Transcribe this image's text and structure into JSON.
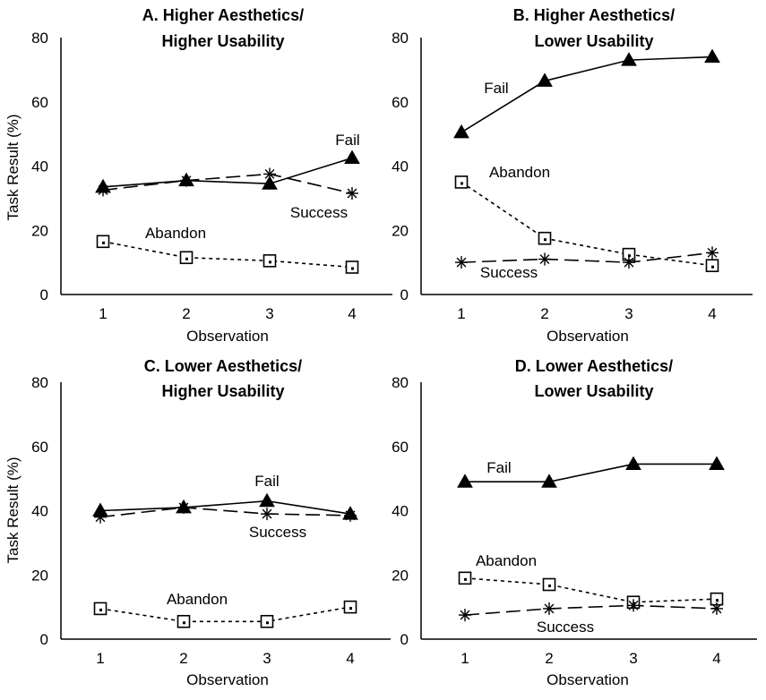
{
  "chart_data": [
    {
      "type": "line",
      "title": [
        "A. Higher Aesthetics/",
        "Higher Usability"
      ],
      "xlabel": "Observation",
      "ylabel": "Task Result (%)",
      "x": [
        1,
        2,
        3,
        4
      ],
      "ylim": [
        0,
        80
      ],
      "yticks": [
        0,
        20,
        40,
        60,
        80
      ],
      "grid": false,
      "series": [
        {
          "name": "Fail",
          "values": [
            33.5,
            35.5,
            34.5,
            42.5
          ],
          "marker": "triangle",
          "dash": "solid"
        },
        {
          "name": "Success",
          "values": [
            32.5,
            35.5,
            37.5,
            31.5
          ],
          "marker": "asterisk",
          "dash": "long-dash"
        },
        {
          "name": "Abandon",
          "values": [
            16.5,
            11.5,
            10.5,
            8.5
          ],
          "marker": "square",
          "dash": "dotted"
        }
      ]
    },
    {
      "type": "line",
      "title": [
        "B. Higher Aesthetics/",
        "Lower Usability"
      ],
      "xlabel": "Observation",
      "ylabel": "",
      "x": [
        1,
        2,
        3,
        4
      ],
      "ylim": [
        0,
        80
      ],
      "yticks": [
        0,
        20,
        40,
        60,
        80
      ],
      "grid": false,
      "series": [
        {
          "name": "Fail",
          "values": [
            50.5,
            66.5,
            73,
            74
          ],
          "marker": "triangle",
          "dash": "solid"
        },
        {
          "name": "Success",
          "values": [
            10,
            11,
            10,
            13
          ],
          "marker": "asterisk",
          "dash": "long-dash"
        },
        {
          "name": "Abandon",
          "values": [
            35,
            17.5,
            12.5,
            9
          ],
          "marker": "square",
          "dash": "dotted"
        }
      ]
    },
    {
      "type": "line",
      "title": [
        "C. Lower Aesthetics/",
        "Higher Usability"
      ],
      "xlabel": "Observation",
      "ylabel": "Task Result (%)",
      "x": [
        1,
        2,
        3,
        4
      ],
      "ylim": [
        0,
        80
      ],
      "yticks": [
        0,
        20,
        40,
        60,
        80
      ],
      "grid": false,
      "series": [
        {
          "name": "Fail",
          "values": [
            40,
            41,
            43,
            39
          ],
          "marker": "triangle",
          "dash": "solid"
        },
        {
          "name": "Success",
          "values": [
            38,
            41,
            39,
            38.5
          ],
          "marker": "asterisk",
          "dash": "long-dash"
        },
        {
          "name": "Abandon",
          "values": [
            9.5,
            5.5,
            5.5,
            10
          ],
          "marker": "square",
          "dash": "dotted"
        }
      ]
    },
    {
      "type": "line",
      "title": [
        "D. Lower Aesthetics/",
        "Lower Usability"
      ],
      "xlabel": "Observation",
      "ylabel": "",
      "x": [
        1,
        2,
        3,
        4
      ],
      "ylim": [
        0,
        80
      ],
      "yticks": [
        0,
        20,
        40,
        60,
        80
      ],
      "grid": false,
      "series": [
        {
          "name": "Fail",
          "values": [
            49,
            49,
            54.5,
            54.5
          ],
          "marker": "triangle",
          "dash": "solid"
        },
        {
          "name": "Success",
          "values": [
            7.5,
            9.5,
            10.5,
            9.5
          ],
          "marker": "asterisk",
          "dash": "long-dash"
        },
        {
          "name": "Abandon",
          "values": [
            19,
            17,
            11.5,
            12.5
          ],
          "marker": "square",
          "dash": "dotted"
        }
      ]
    }
  ]
}
